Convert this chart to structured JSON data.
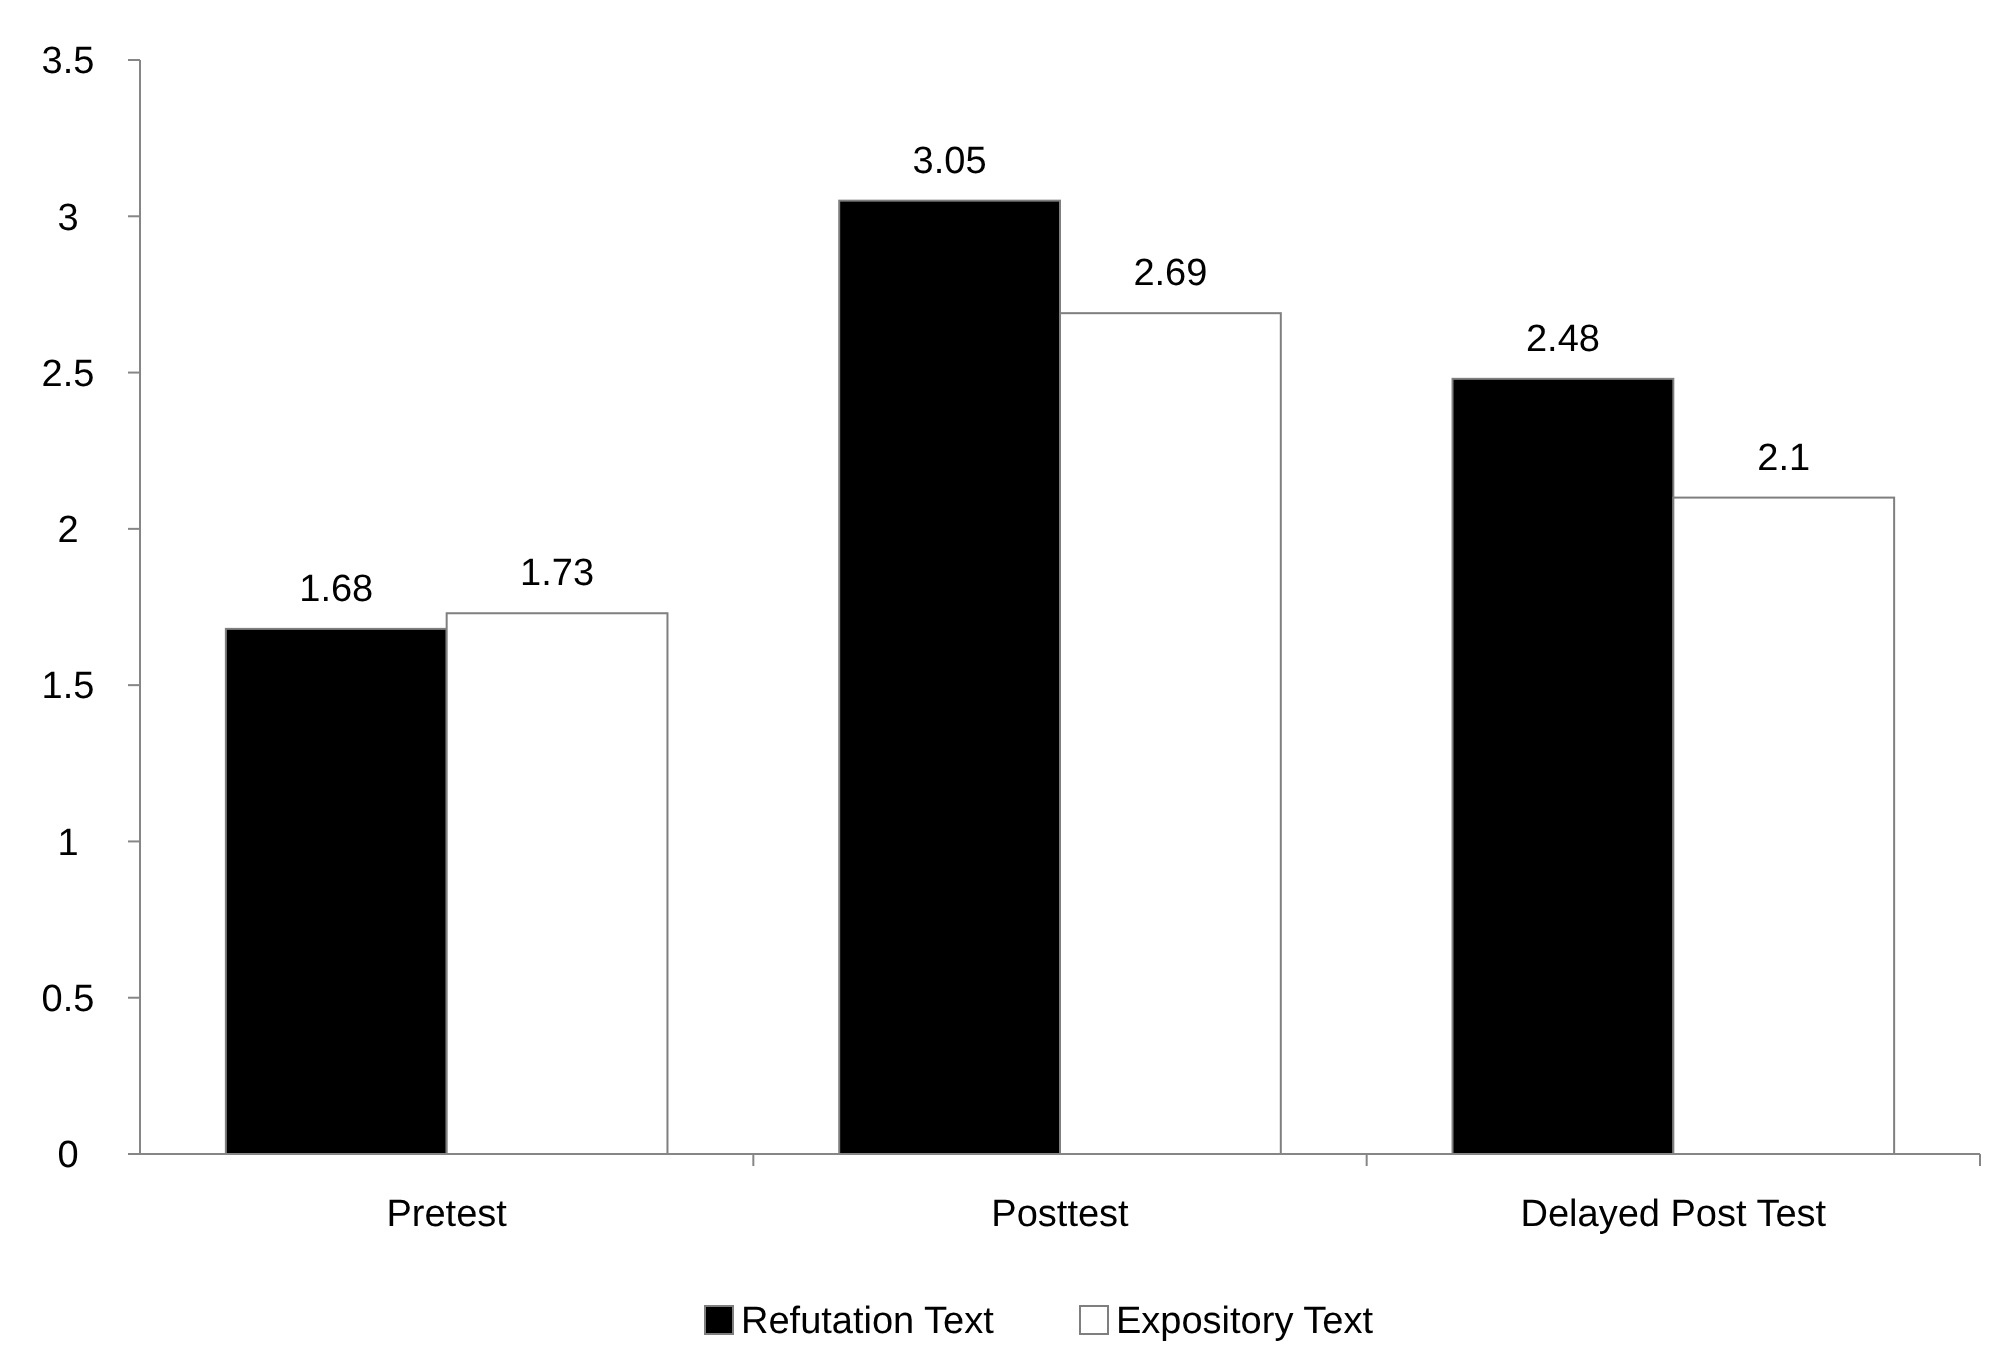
{
  "chart_data": {
    "type": "bar",
    "categories": [
      "Pretest",
      "Posttest",
      "Delayed Post Test"
    ],
    "series": [
      {
        "name": "Refutation Text",
        "color": "#000000",
        "values": [
          1.68,
          3.05,
          2.48
        ]
      },
      {
        "name": "Expository Text",
        "color": "#ffffff",
        "values": [
          1.73,
          2.69,
          2.1
        ]
      }
    ],
    "ylim": [
      0,
      3.5
    ],
    "yticks": [
      0,
      0.5,
      1,
      1.5,
      2,
      2.5,
      3,
      3.5
    ],
    "data_labels": true,
    "legend": "bottom",
    "grid": false
  }
}
